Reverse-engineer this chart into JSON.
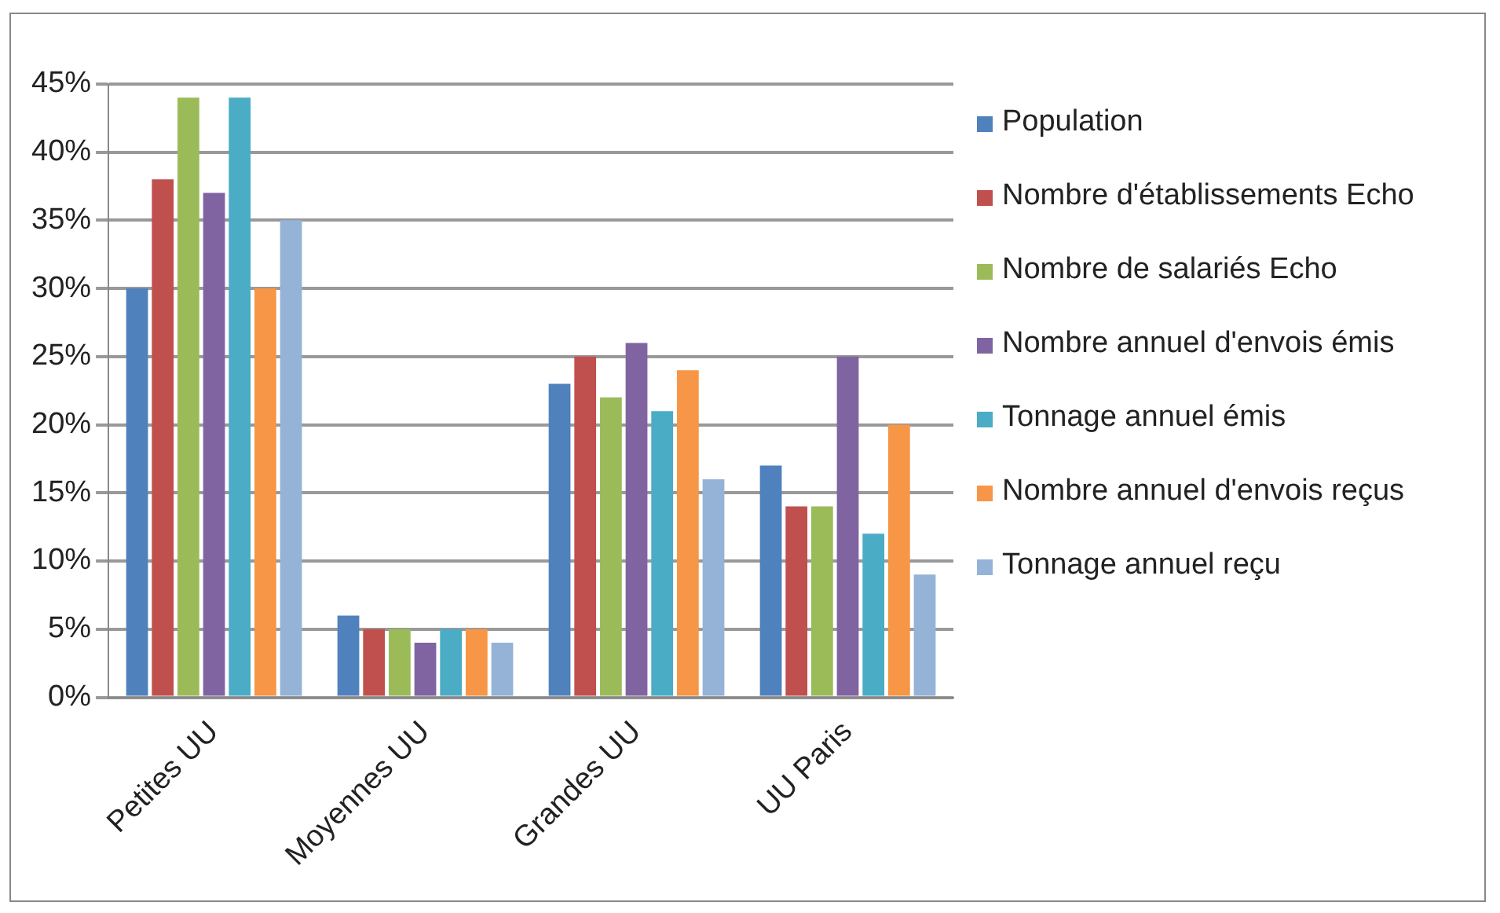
{
  "chart_data": {
    "type": "bar",
    "categories": [
      "Petites UU",
      "Moyennes UU",
      "Grandes UU",
      "UU Paris"
    ],
    "series": [
      {
        "name": "Population",
        "color": "#4f81bd",
        "values": [
          30,
          6,
          23,
          17
        ]
      },
      {
        "name": "Nombre  d'établissements Echo",
        "color": "#c0504d",
        "values": [
          38,
          5,
          25,
          14
        ]
      },
      {
        "name": "Nombre de salariés Echo",
        "color": "#9bbb59",
        "values": [
          44,
          5,
          22,
          14
        ]
      },
      {
        "name": "Nombre annuel d'envois émis",
        "color": "#8064a2",
        "values": [
          37,
          4,
          26,
          25
        ]
      },
      {
        "name": "Tonnage annuel émis",
        "color": "#4bacc6",
        "values": [
          44,
          5,
          21,
          12
        ]
      },
      {
        "name": "Nombre annuel d'envois reçus",
        "color": "#f79646",
        "values": [
          30,
          5,
          24,
          20
        ]
      },
      {
        "name": "Tonnage annuel reçu",
        "color": "#95b3d7",
        "values": [
          35,
          4,
          16,
          9
        ]
      }
    ],
    "ylim": [
      0,
      45
    ],
    "yticks": [
      {
        "value": 0,
        "label": "0%"
      },
      {
        "value": 5,
        "label": "5%"
      },
      {
        "value": 10,
        "label": "10%"
      },
      {
        "value": 15,
        "label": "15%"
      },
      {
        "value": 20,
        "label": "20%"
      },
      {
        "value": 25,
        "label": "25%"
      },
      {
        "value": 30,
        "label": "30%"
      },
      {
        "value": 35,
        "label": "35%"
      },
      {
        "value": 40,
        "label": "40%"
      },
      {
        "value": 45,
        "label": "45%"
      }
    ],
    "grid": "y",
    "legend": "right"
  }
}
